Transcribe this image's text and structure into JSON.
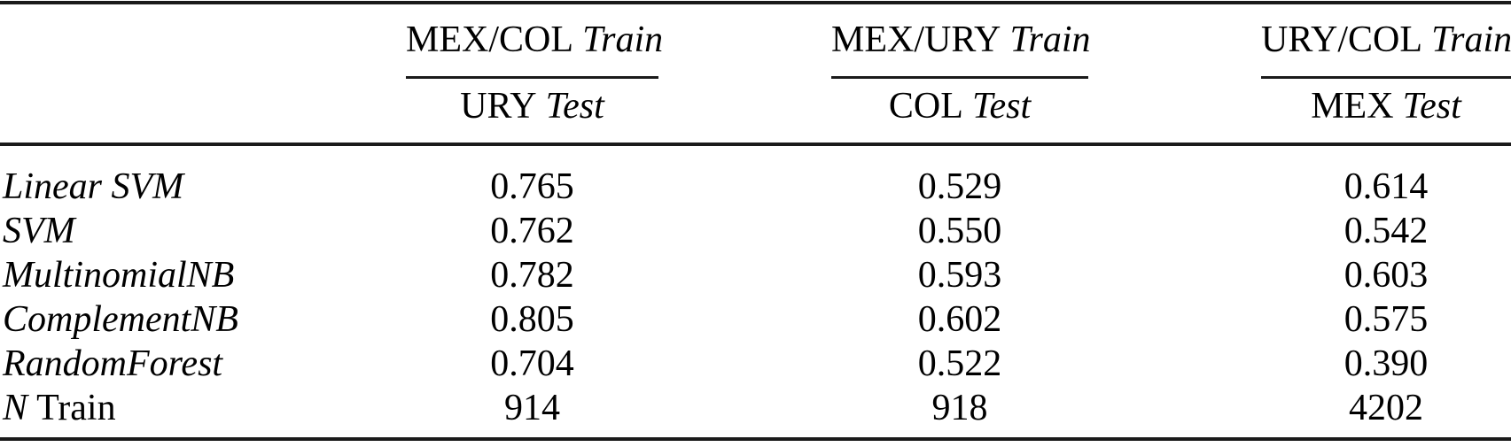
{
  "page": {
    "background": "#ffffff",
    "text_color": "#000000",
    "rule_color": "#1a1a1a"
  },
  "table": {
    "header_groups": [
      {
        "train_pair": "MEX/COL",
        "train_word": "Train",
        "test_name": "URY",
        "test_word": "Test"
      },
      {
        "train_pair": "MEX/URY",
        "train_word": "Train",
        "test_name": "COL",
        "test_word": "Test"
      },
      {
        "train_pair": "URY/COL",
        "train_word": "Train",
        "test_name": "MEX",
        "test_word": "Test"
      }
    ],
    "rows": [
      {
        "label_italic": "Linear SVM",
        "label_roman": "",
        "values": [
          "0.765",
          "0.529",
          "0.614"
        ]
      },
      {
        "label_italic": "SVM",
        "label_roman": "",
        "values": [
          "0.762",
          "0.550",
          "0.542"
        ]
      },
      {
        "label_italic": "MultinomialNB",
        "label_roman": "",
        "values": [
          "0.782",
          "0.593",
          "0.603"
        ]
      },
      {
        "label_italic": "ComplementNB",
        "label_roman": "",
        "values": [
          "0.805",
          "0.602",
          "0.575"
        ]
      },
      {
        "label_italic": "RandomForest",
        "label_roman": "",
        "values": [
          "0.704",
          "0.522",
          "0.390"
        ]
      },
      {
        "label_italic": "N",
        "label_roman": "Train",
        "values": [
          "914",
          "918",
          "4202"
        ]
      }
    ]
  }
}
